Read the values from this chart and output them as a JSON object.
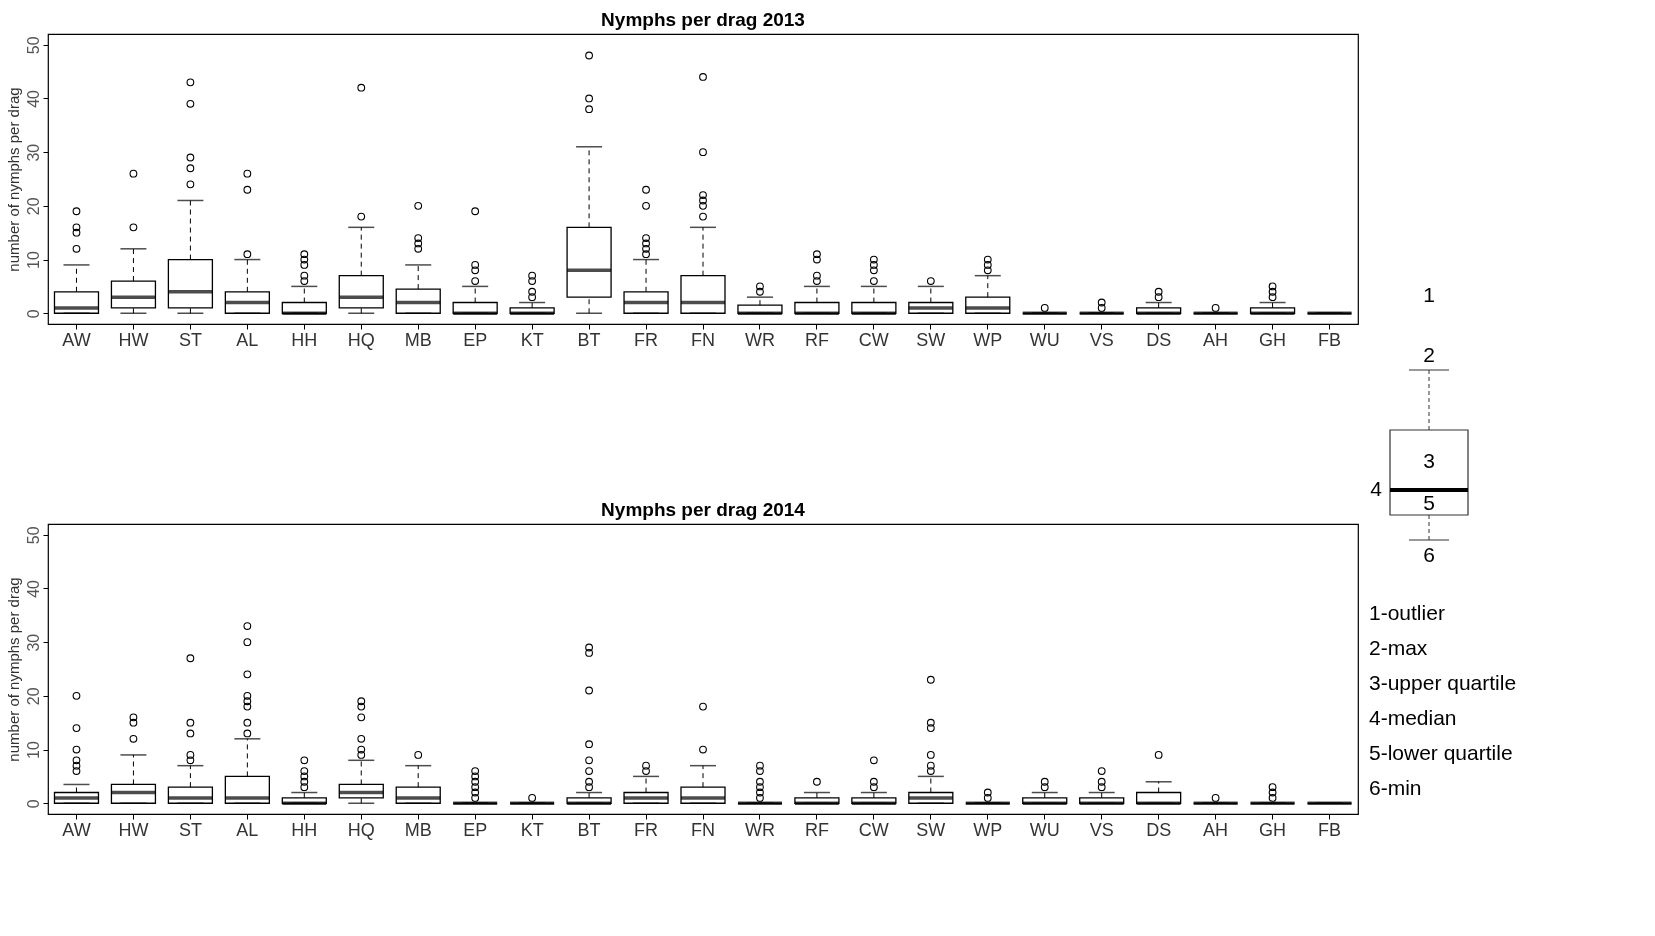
{
  "chart_data": [
    {
      "type": "box",
      "title": "Nymphs per drag 2013",
      "ylabel": "number of nymphs per drag",
      "ylim": [
        -2,
        52
      ],
      "yticks": [
        0,
        10,
        20,
        30,
        40,
        50
      ],
      "grid": false,
      "categories": [
        "AW",
        "HW",
        "ST",
        "AL",
        "HH",
        "HQ",
        "MB",
        "EP",
        "KT",
        "BT",
        "FR",
        "FN",
        "WR",
        "RF",
        "CW",
        "SW",
        "WP",
        "WU",
        "VS",
        "DS",
        "AH",
        "GH",
        "FB"
      ],
      "boxes": [
        {
          "low": 0,
          "q1": 0,
          "median": 1,
          "q3": 4,
          "high": 9,
          "outliers": [
            12,
            15,
            16,
            19
          ]
        },
        {
          "low": 0,
          "q1": 1,
          "median": 3,
          "q3": 6,
          "high": 12,
          "outliers": [
            16,
            26
          ]
        },
        {
          "low": 0,
          "q1": 1,
          "median": 4,
          "q3": 10,
          "high": 21,
          "outliers": [
            24,
            27,
            29,
            39,
            43
          ]
        },
        {
          "low": 0,
          "q1": 0,
          "median": 2,
          "q3": 4,
          "high": 10,
          "outliers": [
            11,
            23,
            26
          ]
        },
        {
          "low": 0,
          "q1": 0,
          "median": 0,
          "q3": 2,
          "high": 5,
          "outliers": [
            6,
            7,
            9,
            10,
            11
          ]
        },
        {
          "low": 0,
          "q1": 1,
          "median": 3,
          "q3": 7,
          "high": 16,
          "outliers": [
            18,
            42
          ]
        },
        {
          "low": 0,
          "q1": 0,
          "median": 2,
          "q3": 4.5,
          "high": 9,
          "outliers": [
            12,
            13,
            14,
            20
          ]
        },
        {
          "low": 0,
          "q1": 0,
          "median": 0,
          "q3": 2,
          "high": 5,
          "outliers": [
            6,
            8,
            9,
            19
          ]
        },
        {
          "low": 0,
          "q1": 0,
          "median": 0,
          "q3": 1,
          "high": 2,
          "outliers": [
            3,
            4,
            6,
            7
          ]
        },
        {
          "low": 0,
          "q1": 3,
          "median": 8,
          "q3": 16,
          "high": 31,
          "outliers": [
            38,
            40,
            48
          ]
        },
        {
          "low": 0,
          "q1": 0,
          "median": 2,
          "q3": 4,
          "high": 10,
          "outliers": [
            11,
            12,
            13,
            14,
            20,
            23
          ]
        },
        {
          "low": 0,
          "q1": 0,
          "median": 2,
          "q3": 7,
          "high": 16,
          "outliers": [
            18,
            20,
            21,
            22,
            30,
            44
          ]
        },
        {
          "low": 0,
          "q1": 0,
          "median": 0,
          "q3": 1.5,
          "high": 3,
          "outliers": [
            4,
            5
          ]
        },
        {
          "low": 0,
          "q1": 0,
          "median": 0,
          "q3": 2,
          "high": 5,
          "outliers": [
            6,
            7,
            10,
            11
          ]
        },
        {
          "low": 0,
          "q1": 0,
          "median": 0,
          "q3": 2,
          "high": 5,
          "outliers": [
            6,
            8,
            9,
            10
          ]
        },
        {
          "low": 0,
          "q1": 0,
          "median": 1,
          "q3": 2,
          "high": 5,
          "outliers": [
            6
          ]
        },
        {
          "low": 0,
          "q1": 0,
          "median": 1,
          "q3": 3,
          "high": 7,
          "outliers": [
            8,
            9,
            10
          ]
        },
        {
          "low": 0,
          "q1": 0,
          "median": 0,
          "q3": 0,
          "high": 0,
          "outliers": [
            1
          ]
        },
        {
          "low": 0,
          "q1": 0,
          "median": 0,
          "q3": 0,
          "high": 0,
          "outliers": [
            1,
            2
          ]
        },
        {
          "low": 0,
          "q1": 0,
          "median": 0,
          "q3": 1,
          "high": 2,
          "outliers": [
            3,
            4
          ]
        },
        {
          "low": 0,
          "q1": 0,
          "median": 0,
          "q3": 0,
          "high": 0,
          "outliers": [
            1
          ]
        },
        {
          "low": 0,
          "q1": 0,
          "median": 0,
          "q3": 1,
          "high": 2,
          "outliers": [
            3,
            4,
            5
          ]
        },
        {
          "low": 0,
          "q1": 0,
          "median": 0,
          "q3": 0,
          "high": 0
        }
      ]
    },
    {
      "type": "box",
      "title": "Nymphs per drag 2014",
      "ylabel": "number of nymphs per drag",
      "ylim": [
        -2,
        52
      ],
      "yticks": [
        0,
        10,
        20,
        30,
        40,
        50
      ],
      "grid": false,
      "categories": [
        "AW",
        "HW",
        "ST",
        "AL",
        "HH",
        "HQ",
        "MB",
        "EP",
        "KT",
        "BT",
        "FR",
        "FN",
        "WR",
        "RF",
        "CW",
        "SW",
        "WP",
        "WU",
        "VS",
        "DS",
        "AH",
        "GH",
        "FB"
      ],
      "boxes": [
        {
          "low": 0,
          "q1": 0,
          "median": 1,
          "q3": 2,
          "high": 3.5,
          "outliers": [
            6,
            7,
            8,
            10,
            14,
            20
          ]
        },
        {
          "low": 0,
          "q1": 0,
          "median": 2,
          "q3": 3.5,
          "high": 9,
          "outliers": [
            12,
            15,
            16
          ]
        },
        {
          "low": 0,
          "q1": 0,
          "median": 1,
          "q3": 3,
          "high": 7,
          "outliers": [
            8,
            9,
            13,
            15,
            27
          ]
        },
        {
          "low": 0,
          "q1": 0,
          "median": 1,
          "q3": 5,
          "high": 12,
          "outliers": [
            13,
            15,
            18,
            19,
            20,
            24,
            30,
            33
          ]
        },
        {
          "low": 0,
          "q1": 0,
          "median": 0,
          "q3": 1,
          "high": 2,
          "outliers": [
            3,
            4,
            5,
            6,
            8
          ]
        },
        {
          "low": 0,
          "q1": 1,
          "median": 2,
          "q3": 3.5,
          "high": 8,
          "outliers": [
            9,
            10,
            12,
            16,
            18,
            19
          ]
        },
        {
          "low": 0,
          "q1": 0,
          "median": 1,
          "q3": 3,
          "high": 7,
          "outliers": [
            9
          ]
        },
        {
          "low": 0,
          "q1": 0,
          "median": 0,
          "q3": 0,
          "high": 0,
          "outliers": [
            1,
            2,
            3,
            4,
            5,
            6
          ]
        },
        {
          "low": 0,
          "q1": 0,
          "median": 0,
          "q3": 0,
          "high": 0,
          "outliers": [
            1
          ]
        },
        {
          "low": 0,
          "q1": 0,
          "median": 0,
          "q3": 1,
          "high": 2,
          "outliers": [
            3,
            4,
            6,
            8,
            11,
            21,
            28,
            29
          ]
        },
        {
          "low": 0,
          "q1": 0,
          "median": 1,
          "q3": 2,
          "high": 5,
          "outliers": [
            6,
            7
          ]
        },
        {
          "low": 0,
          "q1": 0,
          "median": 1,
          "q3": 3,
          "high": 7,
          "outliers": [
            10,
            18
          ]
        },
        {
          "low": 0,
          "q1": 0,
          "median": 0,
          "q3": 0,
          "high": 0,
          "outliers": [
            1,
            2,
            3,
            4,
            6,
            7
          ]
        },
        {
          "low": 0,
          "q1": 0,
          "median": 0,
          "q3": 1,
          "high": 2,
          "outliers": [
            4
          ]
        },
        {
          "low": 0,
          "q1": 0,
          "median": 0,
          "q3": 1,
          "high": 2,
          "outliers": [
            3,
            4,
            8
          ]
        },
        {
          "low": 0,
          "q1": 0,
          "median": 1,
          "q3": 2,
          "high": 5,
          "outliers": [
            6,
            7,
            9,
            14,
            15,
            23
          ]
        },
        {
          "low": 0,
          "q1": 0,
          "median": 0,
          "q3": 0,
          "high": 0,
          "outliers": [
            1,
            2
          ]
        },
        {
          "low": 0,
          "q1": 0,
          "median": 0,
          "q3": 1,
          "high": 2,
          "outliers": [
            3,
            4
          ]
        },
        {
          "low": 0,
          "q1": 0,
          "median": 0,
          "q3": 1,
          "high": 2,
          "outliers": [
            3,
            4,
            6
          ]
        },
        {
          "low": 0,
          "q1": 0,
          "median": 0,
          "q3": 2,
          "high": 4,
          "outliers": [
            9
          ]
        },
        {
          "low": 0,
          "q1": 0,
          "median": 0,
          "q3": 0,
          "high": 0,
          "outliers": [
            1
          ]
        },
        {
          "low": 0,
          "q1": 0,
          "median": 0,
          "q3": 0,
          "high": 0,
          "outliers": [
            1,
            2,
            3
          ]
        },
        {
          "low": 0,
          "q1": 0,
          "median": 0,
          "q3": 0,
          "high": 0
        }
      ]
    },
    {
      "type": "other",
      "annotations": [
        "1",
        "2",
        "3",
        "4",
        "5",
        "6",
        "1-outlier",
        "2-max",
        "3-upper quartile",
        "4-median",
        "5-lower quartile",
        "6-min"
      ]
    }
  ]
}
